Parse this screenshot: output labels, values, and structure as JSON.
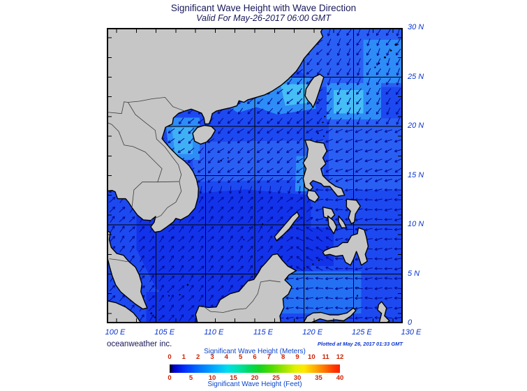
{
  "header": {
    "title": "Significant Wave Height with Wave Direction",
    "subtitle": "Valid For May-26-2017 06:00 GMT"
  },
  "credits": {
    "provider": "oceanweather inc.",
    "plotted_at": "Plotted at May 26, 2017 01:33 GMT"
  },
  "axes": {
    "lat_labels": [
      {
        "text": "30 N",
        "lat": 30
      },
      {
        "text": "25 N",
        "lat": 25
      },
      {
        "text": "20 N",
        "lat": 20
      },
      {
        "text": "15 N",
        "lat": 15
      },
      {
        "text": "10 N",
        "lat": 10
      },
      {
        "text": "5 N",
        "lat": 5
      },
      {
        "text": "0",
        "lat": 0
      }
    ],
    "lon_labels": [
      {
        "text": "100 E",
        "lon": 100
      },
      {
        "text": "105 E",
        "lon": 105
      },
      {
        "text": "110 E",
        "lon": 110
      },
      {
        "text": "115 E",
        "lon": 115
      },
      {
        "text": "120 E",
        "lon": 120
      },
      {
        "text": "125 E",
        "lon": 125
      },
      {
        "text": "130 E",
        "lon": 130
      }
    ]
  },
  "legend": {
    "meters_caption": "Significant Wave Height (Meters)",
    "feet_caption": "Significant Wave Height (Feet)",
    "meters_ticks": [
      0,
      1,
      2,
      3,
      4,
      5,
      6,
      7,
      8,
      9,
      10,
      11,
      12
    ],
    "feet_ticks": [
      0,
      5,
      10,
      15,
      20,
      25,
      30,
      35,
      40
    ],
    "gradient": [
      [
        0,
        "#000000"
      ],
      [
        0.025,
        "#0000c8"
      ],
      [
        0.09,
        "#0031ff"
      ],
      [
        0.18,
        "#0077ff"
      ],
      [
        0.27,
        "#00b0ff"
      ],
      [
        0.34,
        "#00ddea"
      ],
      [
        0.4,
        "#00e0ae"
      ],
      [
        0.47,
        "#00d95d"
      ],
      [
        0.53,
        "#15d41e"
      ],
      [
        0.6,
        "#52dc00"
      ],
      [
        0.68,
        "#a5e600"
      ],
      [
        0.74,
        "#e2f200"
      ],
      [
        0.79,
        "#ffe700"
      ],
      [
        0.85,
        "#ffb000"
      ],
      [
        0.91,
        "#ff7300"
      ],
      [
        0.96,
        "#ff3c00"
      ],
      [
        1,
        "#ff1e00"
      ]
    ]
  },
  "map": {
    "lon_range": [
      100,
      130
    ],
    "lat_range": [
      0,
      30
    ],
    "grid_interval_deg": 5,
    "tick_interval_deg": 2,
    "shading": [
      {
        "color": "#1233e9",
        "pts": [
          [
            103,
            12.8
          ],
          [
            109,
            13.2
          ],
          [
            114,
            13.6
          ],
          [
            120.7,
            13.0
          ],
          [
            120.7,
            4.8
          ],
          [
            117.6,
            1.8
          ],
          [
            109.2,
            0.8
          ],
          [
            105,
            3.5
          ],
          [
            103,
            7.5
          ]
        ]
      },
      {
        "color": "#1233e9",
        "pts": [
          [
            119,
            9.7
          ],
          [
            123,
            9.7
          ],
          [
            123,
            5.8
          ],
          [
            119,
            5.8
          ]
        ]
      },
      {
        "color": "#1233e9",
        "pts": [
          [
            104,
            3.2
          ],
          [
            112,
            3.2
          ],
          [
            112,
            0
          ],
          [
            104,
            0
          ]
        ]
      },
      {
        "color": "#2a5ff3",
        "pts": [
          [
            108.5,
            18.4
          ],
          [
            122,
            18.6
          ],
          [
            122,
            14.6
          ],
          [
            108.9,
            14.4
          ]
        ]
      },
      {
        "color": "#2a5ff3",
        "pts": [
          [
            118.5,
            30
          ],
          [
            130,
            30
          ],
          [
            130,
            24
          ],
          [
            121.5,
            24
          ],
          [
            118.5,
            26.5
          ]
        ]
      },
      {
        "color": "#2a5ff3",
        "pts": [
          [
            122.5,
            20.8
          ],
          [
            130,
            20.8
          ],
          [
            130,
            13.5
          ],
          [
            122.5,
            13.5
          ]
        ]
      },
      {
        "color": "#2e8cf6",
        "pts": [
          [
            116.3,
            25
          ],
          [
            120.6,
            25
          ],
          [
            121.2,
            21.8
          ],
          [
            117.3,
            21.2
          ],
          [
            114.8,
            22.1
          ]
        ]
      },
      {
        "color": "#2e8cf6",
        "pts": [
          [
            112.3,
            22.0
          ],
          [
            117,
            23.4
          ],
          [
            118,
            22.8
          ],
          [
            113.3,
            21.4
          ]
        ]
      },
      {
        "color": "#2e8cf6",
        "pts": [
          [
            122.3,
            24.4
          ],
          [
            127.8,
            24.4
          ],
          [
            127.8,
            20.7
          ],
          [
            122.3,
            20.7
          ]
        ]
      },
      {
        "color": "#2e8cf6",
        "pts": [
          [
            126,
            28.8
          ],
          [
            130,
            28.8
          ],
          [
            130,
            24.4
          ],
          [
            126,
            24.4
          ]
        ]
      },
      {
        "color": "#2e8cf6",
        "pts": [
          [
            105.9,
            20.9
          ],
          [
            109.4,
            20.9
          ],
          [
            109.4,
            16.6
          ],
          [
            106.4,
            16.6
          ]
        ]
      },
      {
        "color": "#2e8cf6",
        "pts": [
          [
            119.2,
            17
          ],
          [
            120.6,
            17
          ],
          [
            120.4,
            13.4
          ],
          [
            119.1,
            13.4
          ]
        ]
      },
      {
        "color": "#2470f2",
        "pts": [
          [
            117.5,
            5.3
          ],
          [
            125.8,
            5.3
          ],
          [
            125.8,
            1.0
          ],
          [
            117.5,
            1.0
          ]
        ]
      },
      {
        "color": "#45bdf5",
        "pts": [
          [
            117.6,
            24.3
          ],
          [
            120.3,
            24.3
          ],
          [
            120.5,
            22.4
          ],
          [
            118.1,
            22.1
          ]
        ]
      },
      {
        "color": "#45bdf5",
        "pts": [
          [
            123,
            23.7
          ],
          [
            126,
            23.7
          ],
          [
            126,
            21.3
          ],
          [
            123,
            21.3
          ]
        ]
      },
      {
        "color": "#3fb0f4",
        "pts": [
          [
            106.6,
            19.9
          ],
          [
            108.7,
            19.9
          ],
          [
            108.7,
            17.2
          ],
          [
            106.9,
            17.2
          ]
        ]
      }
    ],
    "arrow_field": {
      "spacing_deg": 1,
      "default_dir": 225,
      "rules": [
        {
          "lon": [
            119,
            123.3
          ],
          "lat": [
            5.5,
            9.7
          ],
          "dir": 150
        },
        {
          "lon": [
            117,
            130
          ],
          "lat": [
            0,
            5.5
          ],
          "dir": 182
        },
        {
          "lon": [
            100,
            117
          ],
          "lat": [
            0,
            13
          ],
          "dir": 50
        },
        {
          "lon": [
            117,
            120.6
          ],
          "lat": [
            0,
            13
          ],
          "dir": 42
        },
        {
          "lon": [
            120.6,
            130
          ],
          "lat": [
            5.5,
            14
          ],
          "dir": 186
        },
        {
          "lon": [
            106,
            120.6
          ],
          "lat": [
            13,
            14.3
          ],
          "dir": 255
        },
        {
          "lon": [
            100,
            121
          ],
          "lat": [
            14.3,
            20
          ],
          "dir": 221
        },
        {
          "lon": [
            121,
            130
          ],
          "lat": [
            14,
            20
          ],
          "dir": 203
        },
        {
          "lon": [
            100,
            122
          ],
          "lat": [
            20,
            30
          ],
          "dir": 226
        },
        {
          "lon": [
            122,
            130
          ],
          "lat": [
            20,
            24
          ],
          "dir": 238
        },
        {
          "lon": [
            118,
            130
          ],
          "lat": [
            24,
            30
          ],
          "dir": 243
        }
      ]
    }
  },
  "colors": {
    "title_text": "#18185a",
    "axis_text": "#0a35cf",
    "legend_caption": "#0a44cc",
    "legend_number": "#cc2200",
    "sea_base": "#1d49f0",
    "land": "#c6c6c6",
    "coastline": "#000000",
    "border_line": "#3c3c3c",
    "arrow": "#000a96",
    "grid_line": "#000000"
  }
}
